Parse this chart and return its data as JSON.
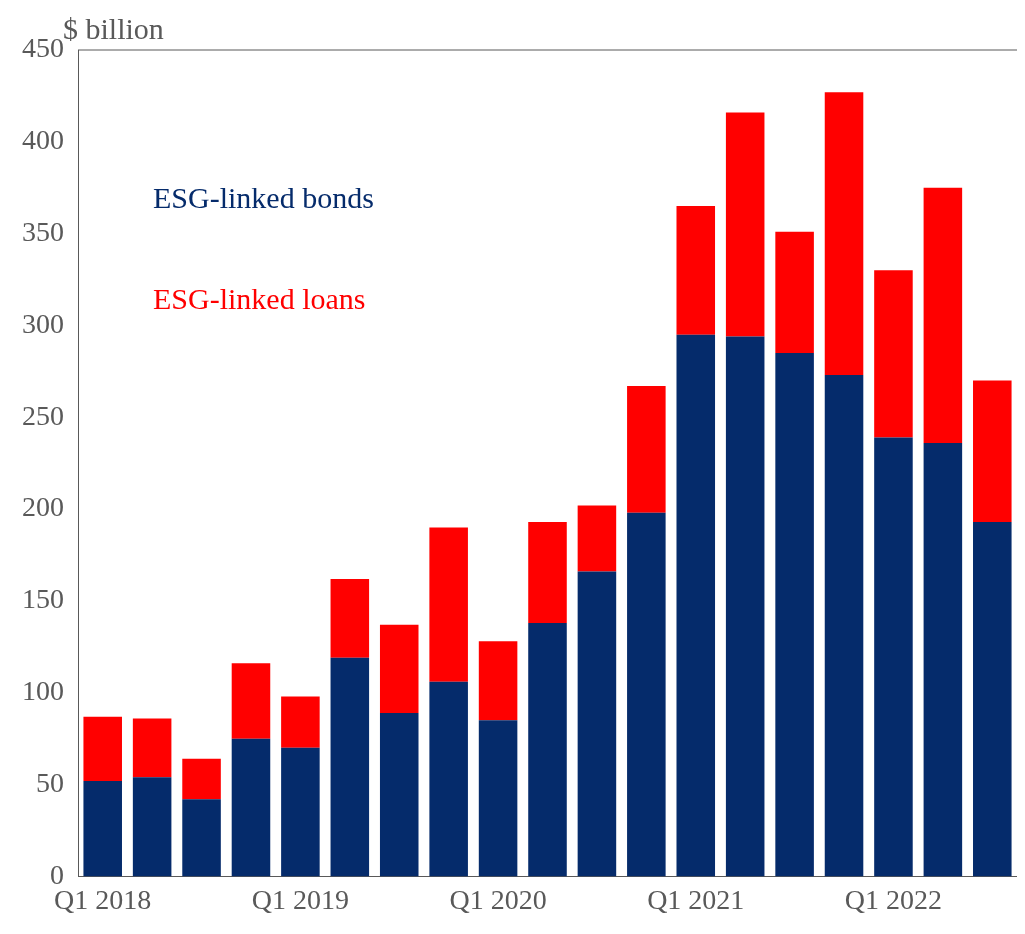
{
  "chart_data": {
    "type": "bar",
    "stacked": true,
    "ylabel": "$ billion",
    "categories": [
      "Q1 2018",
      null,
      null,
      null,
      "Q1 2019",
      null,
      null,
      null,
      "Q1 2020",
      null,
      null,
      null,
      "Q1 2021",
      null,
      null,
      null,
      "Q1 2022",
      null,
      null
    ],
    "series": [
      {
        "name": "ESG-linked bonds",
        "color": "#052b6b",
        "values": [
          52,
          54,
          42,
          75,
          70,
          119,
          89,
          106,
          85,
          138,
          166,
          198,
          295,
          294,
          285,
          273,
          239,
          236,
          193
        ]
      },
      {
        "name": "ESG-linked loans",
        "color": "#ff0000",
        "values": [
          35,
          32,
          22,
          41,
          28,
          43,
          48,
          84,
          43,
          55,
          36,
          69,
          70,
          122,
          66,
          154,
          91,
          139,
          77
        ]
      }
    ],
    "ylim": [
      0,
      450
    ],
    "yticks": [
      0,
      50,
      100,
      150,
      200,
      250,
      300,
      350,
      400,
      450
    ],
    "legend": "top left"
  }
}
